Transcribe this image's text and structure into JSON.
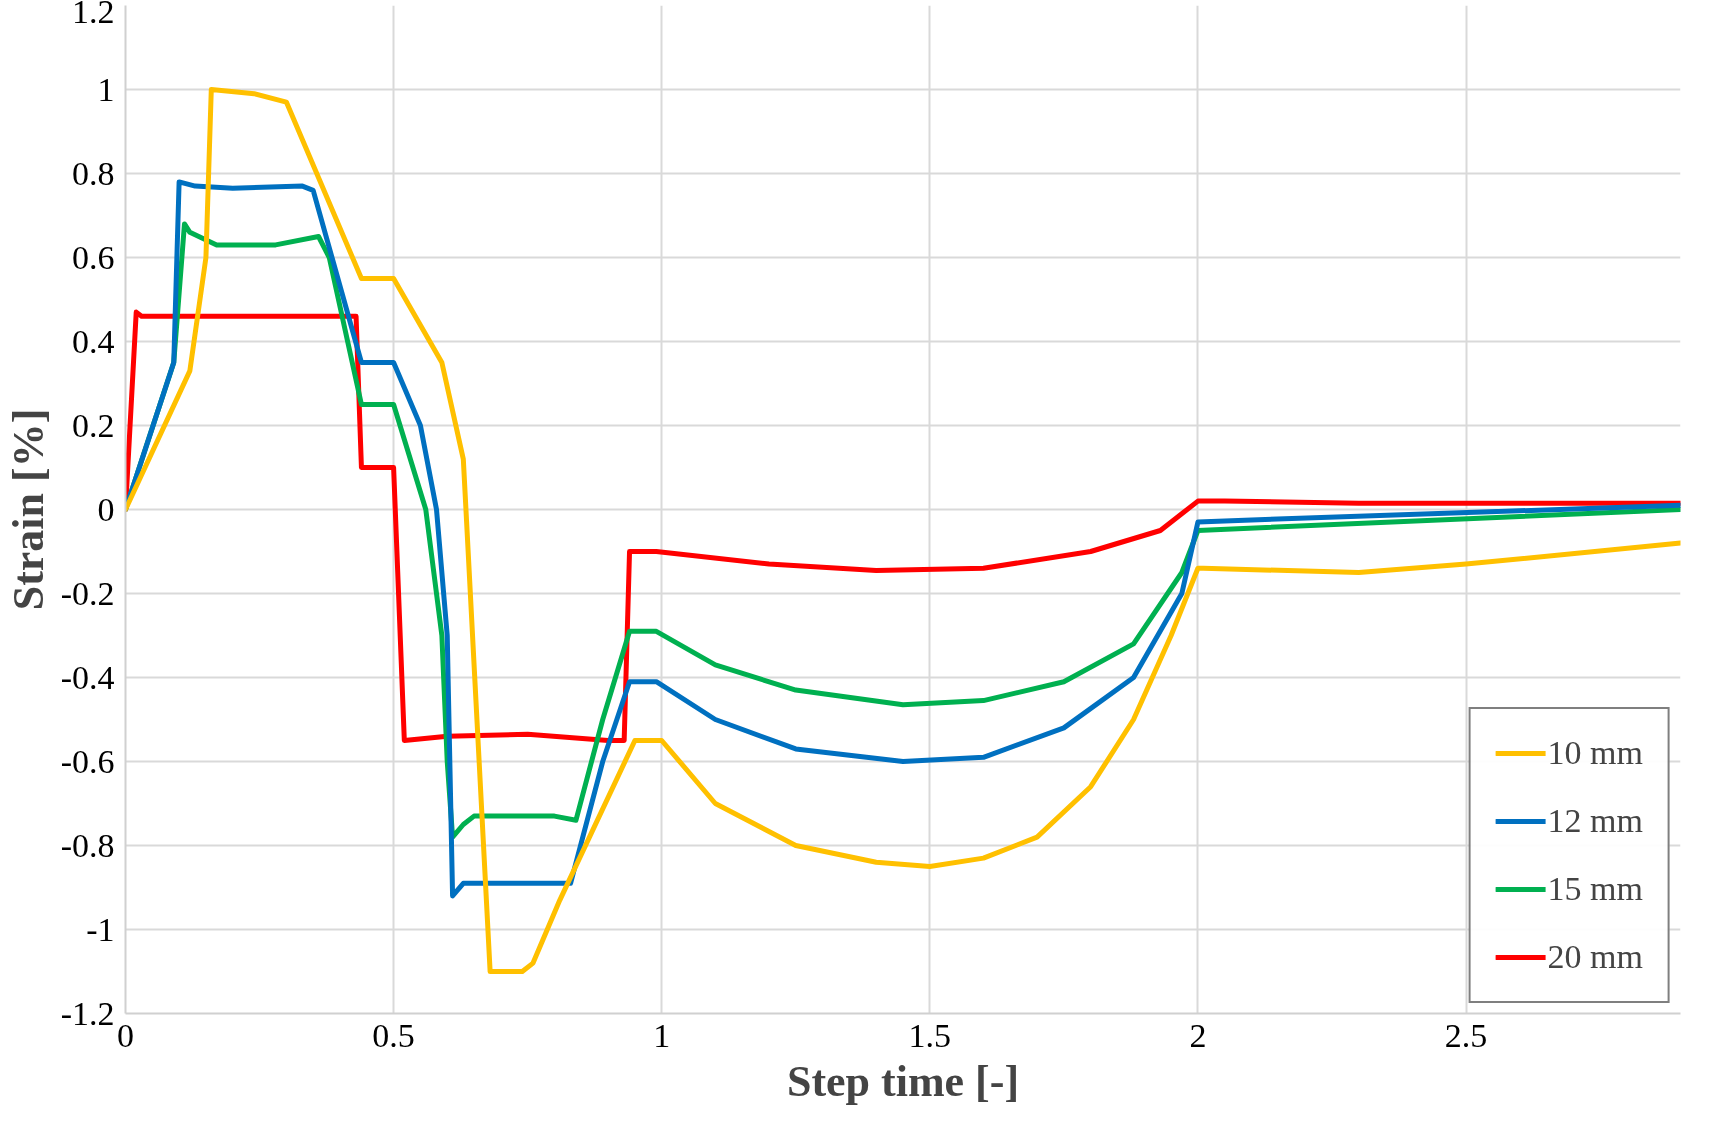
{
  "chart_data": {
    "type": "line",
    "xlabel": "Step time [-]",
    "ylabel": "Strain [%]",
    "xlim": [
      0,
      2.9
    ],
    "xticks": [
      0,
      0.5,
      1,
      1.5,
      2,
      2.5
    ],
    "ylim": [
      -1.2,
      1.2
    ],
    "yticks": [
      -1.2,
      -1,
      -0.8,
      -0.6,
      -0.4,
      -0.2,
      0,
      0.2,
      0.4,
      0.6,
      0.8,
      1,
      1.2
    ],
    "grid": true,
    "legend": "bottom right",
    "marker": "none",
    "line_style": "solid",
    "series": [
      {
        "name": "10 mm",
        "color": "#ffc000",
        "x": [
          0,
          0.12,
          0.15,
          0.16,
          0.24,
          0.3,
          0.44,
          0.5,
          0.59,
          0.63,
          0.68,
          0.74,
          0.76,
          0.81,
          0.95,
          1.0,
          1.1,
          1.25,
          1.4,
          1.5,
          1.6,
          1.7,
          1.8,
          1.88,
          1.95,
          2.0,
          2.01,
          2.3,
          2.5,
          2.9
        ],
        "values": [
          0,
          0.33,
          0.6,
          1.0,
          0.99,
          0.97,
          0.55,
          0.55,
          0.35,
          0.12,
          -1.1,
          -1.1,
          -1.08,
          -0.93,
          -0.55,
          -0.55,
          -0.7,
          -0.8,
          -0.84,
          -0.85,
          -0.83,
          -0.78,
          -0.66,
          -0.5,
          -0.3,
          -0.14,
          -0.14,
          -0.15,
          -0.13,
          -0.08
        ]
      },
      {
        "name": "12 mm",
        "color": "#0070c0",
        "x": [
          0,
          0.09,
          0.1,
          0.13,
          0.2,
          0.33,
          0.35,
          0.44,
          0.5,
          0.55,
          0.58,
          0.6,
          0.61,
          0.63,
          0.78,
          0.83,
          0.89,
          0.94,
          0.99,
          1.1,
          1.25,
          1.45,
          1.6,
          1.75,
          1.88,
          1.97,
          2.0,
          2.1,
          2.9
        ],
        "values": [
          0,
          0.35,
          0.78,
          0.77,
          0.765,
          0.77,
          0.76,
          0.35,
          0.35,
          0.2,
          0,
          -0.3,
          -0.92,
          -0.89,
          -0.89,
          -0.89,
          -0.6,
          -0.41,
          -0.41,
          -0.5,
          -0.57,
          -0.6,
          -0.59,
          -0.52,
          -0.4,
          -0.2,
          -0.03,
          -0.025,
          0.01
        ]
      },
      {
        "name": "15 mm",
        "color": "#00b050",
        "x": [
          0,
          0.09,
          0.11,
          0.12,
          0.17,
          0.28,
          0.36,
          0.38,
          0.44,
          0.5,
          0.56,
          0.59,
          0.6,
          0.61,
          0.63,
          0.65,
          0.8,
          0.84,
          0.89,
          0.94,
          0.99,
          1.1,
          1.25,
          1.45,
          1.6,
          1.75,
          1.88,
          1.97,
          2.0,
          2.9
        ],
        "values": [
          0,
          0.35,
          0.68,
          0.66,
          0.63,
          0.63,
          0.65,
          0.6,
          0.25,
          0.25,
          0,
          -0.3,
          -0.6,
          -0.78,
          -0.75,
          -0.73,
          -0.73,
          -0.74,
          -0.5,
          -0.29,
          -0.29,
          -0.37,
          -0.43,
          -0.465,
          -0.455,
          -0.41,
          -0.32,
          -0.15,
          -0.05,
          0.0
        ]
      },
      {
        "name": "20 mm",
        "color": "#ff0000",
        "x": [
          0,
          0.02,
          0.03,
          0.43,
          0.44,
          0.5,
          0.52,
          0.6,
          0.75,
          0.9,
          0.93,
          0.94,
          0.99,
          1.2,
          1.4,
          1.6,
          1.8,
          1.93,
          2.0,
          2.05,
          2.3,
          2.9
        ],
        "values": [
          0,
          0.47,
          0.46,
          0.46,
          0.1,
          0.1,
          -0.55,
          -0.54,
          -0.535,
          -0.55,
          -0.55,
          -0.1,
          -0.1,
          -0.13,
          -0.145,
          -0.14,
          -0.1,
          -0.05,
          0.02,
          0.02,
          0.015,
          0.015
        ]
      }
    ]
  }
}
